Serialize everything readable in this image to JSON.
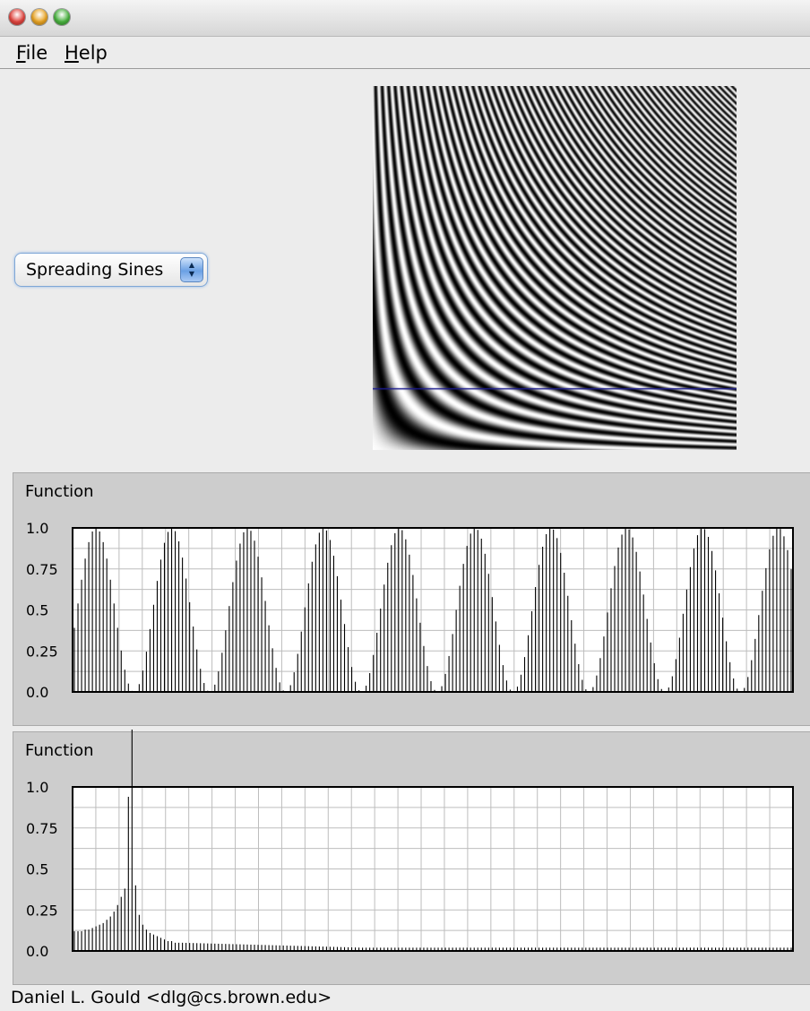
{
  "window": {
    "controls": [
      {
        "name": "close",
        "color": "#e0443e"
      },
      {
        "name": "minimize",
        "color": "#e8a323"
      },
      {
        "name": "zoom",
        "color": "#48b13e"
      }
    ]
  },
  "menu": {
    "items": [
      {
        "label": "File",
        "mnemonic": "F",
        "rest": "ile"
      },
      {
        "label": "Help",
        "mnemonic": "H",
        "rest": "elp"
      }
    ]
  },
  "selector": {
    "selected": "Spreading Sines"
  },
  "pattern_view": {
    "description_colors": {
      "line": "#1a1a8c",
      "stripes_dark": "#000000",
      "stripes_light": "#ffffff"
    },
    "scanline_fraction_from_top": 0.83
  },
  "plots": [
    {
      "title": "Function",
      "y_tick_labels": [
        "1.0",
        "0.75",
        "0.5",
        "0.25",
        "0.0"
      ]
    },
    {
      "title": "Function",
      "y_tick_labels": [
        "1.0",
        "0.75",
        "0.5",
        "0.25",
        "0.0"
      ]
    }
  ],
  "chart_data": [
    {
      "type": "bar",
      "title": "Function",
      "ylim": [
        0,
        1
      ],
      "yticks": [
        0.0,
        0.25,
        0.5,
        0.75,
        1.0
      ],
      "grid": true,
      "bar_count": 200,
      "periods": 9.5,
      "description": "sampled cosine-like wave, values 0 to 1",
      "peaks_at_fraction": [
        0.03,
        0.13,
        0.23,
        0.34,
        0.44,
        0.55,
        0.65,
        0.75,
        0.86,
        0.96
      ]
    },
    {
      "type": "bar",
      "title": "Function",
      "ylim": [
        0,
        1
      ],
      "yticks": [
        0.0,
        0.25,
        0.5,
        0.75,
        1.0
      ],
      "grid": true,
      "bar_count": 200,
      "spectrum_values_head": [
        0.12,
        0.12,
        0.12,
        0.13,
        0.13,
        0.14,
        0.15,
        0.16,
        0.17,
        0.19,
        0.21,
        0.24,
        0.28,
        0.33,
        0.38,
        0.94,
        1.35,
        0.4,
        0.22,
        0.16,
        0.13,
        0.11,
        0.1,
        0.09,
        0.08,
        0.07,
        0.06,
        0.06,
        0.05,
        0.05
      ],
      "tail_value": 0.02
    }
  ],
  "status": {
    "text": "Daniel L. Gould <dlg@cs.brown.edu>"
  }
}
